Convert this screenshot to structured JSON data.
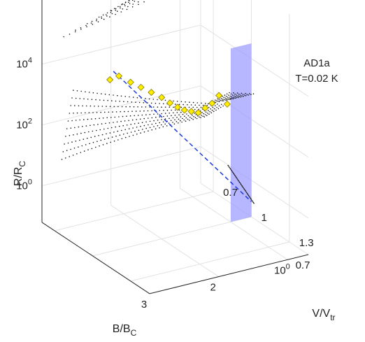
{
  "chart_data": {
    "type": "scatter",
    "view": "3d",
    "annotation": [
      "AD1a",
      "T=0.02 K"
    ],
    "axes": {
      "x": {
        "label_main": "B/B",
        "label_sub": "C",
        "ticks": [
          "3",
          "2",
          "10",
          "0.7"
        ],
        "tick_sup": "0",
        "range": [
          0.7,
          3
        ]
      },
      "y": {
        "label_main": "V/V",
        "label_sub": "tr",
        "ticks": [
          "0.7",
          "1",
          "1.3"
        ],
        "range": [
          0.6,
          1.45
        ]
      },
      "z": {
        "label_main": "R/R",
        "label_sub": "C",
        "ticks": [
          "10",
          "10",
          "10"
        ],
        "tick_sups": [
          "0",
          "2",
          "4"
        ],
        "scale": "log",
        "range": [
          -1.2,
          6.3
        ]
      }
    },
    "grid": true,
    "series": [
      {
        "role": "dots",
        "curves_wall": [
          {
            "ymin": 0.73,
            "ymax": 1.0
          },
          {
            "ymin": 0.74,
            "ymax": 1.02
          },
          {
            "ymin": 0.75,
            "ymax": 1.04
          },
          {
            "ymin": 0.76,
            "ymax": 1.06
          },
          {
            "ymin": 0.77,
            "ymax": 1.08
          },
          {
            "ymin": 0.78,
            "ymax": 1.1
          },
          {
            "ymin": 0.79,
            "ymax": 1.12
          },
          {
            "ymin": 0.8,
            "ymax": 1.14
          },
          {
            "ymin": 0.81,
            "ymax": 1.16
          },
          {
            "ymin": 0.82,
            "ymax": 1.18
          }
        ],
        "curves_back": [
          {
            "x_min": 0.9,
            "x_max": 2.72
          },
          {
            "x_min": 0.9,
            "x_max": 2.55
          },
          {
            "x_min": 0.9,
            "x_max": 2.38
          },
          {
            "x_min": 0.9,
            "x_max": 2.21
          },
          {
            "x_min": 0.9,
            "x_max": 2.04
          },
          {
            "x_min": 0.9,
            "x_max": 1.87
          },
          {
            "x_min": 0.9,
            "x_max": 1.7
          },
          {
            "x_min": 0.9,
            "x_max": 1.53
          },
          {
            "x_min": 0.9,
            "x_max": 1.36
          }
        ]
      },
      {
        "role": "diamonds",
        "color": "#ffee00",
        "points": [
          {
            "x": 2.75,
            "logz": 4.45
          },
          {
            "x": 2.62,
            "logz": 4.5
          },
          {
            "x": 2.45,
            "logz": 4.2
          },
          {
            "x": 2.3,
            "logz": 3.95
          },
          {
            "x": 2.15,
            "logz": 3.7
          },
          {
            "x": 2.0,
            "logz": 3.45
          },
          {
            "x": 1.88,
            "logz": 3.2
          },
          {
            "x": 1.77,
            "logz": 3.0
          },
          {
            "x": 1.67,
            "logz": 2.85
          },
          {
            "x": 1.57,
            "logz": 2.75
          },
          {
            "x": 1.47,
            "logz": 2.65
          },
          {
            "x": 1.37,
            "logz": 2.75
          },
          {
            "x": 1.27,
            "logz": 2.85
          },
          {
            "x": 1.17,
            "logz": 3.05
          },
          {
            "x": 1.05,
            "logz": 2.7
          }
        ]
      },
      {
        "role": "dashed-line",
        "color": "#1a3be0",
        "from": {
          "x": 2.7,
          "y": 1.0,
          "logz": 4.7
        },
        "to": {
          "x": 0.7,
          "y": 1.0,
          "logz": -0.7
        }
      },
      {
        "role": "plane",
        "color": "#9999ff",
        "y": 1.0,
        "x_range": [
          0.7,
          1.0
        ],
        "logz_range": [
          -1.2,
          4.5
        ]
      }
    ]
  }
}
